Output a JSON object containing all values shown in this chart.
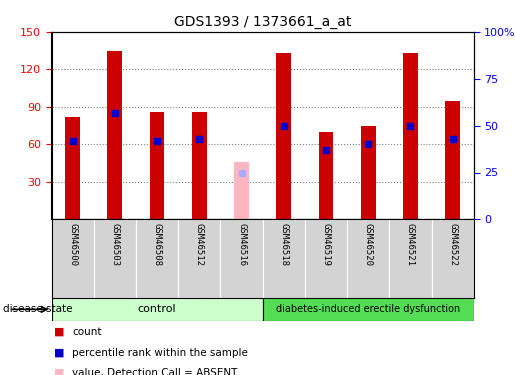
{
  "title": "GDS1393 / 1373661_a_at",
  "samples": [
    "GSM46500",
    "GSM46503",
    "GSM46508",
    "GSM46512",
    "GSM46516",
    "GSM46518",
    "GSM46519",
    "GSM46520",
    "GSM46521",
    "GSM46522"
  ],
  "counts": [
    82,
    135,
    86,
    86,
    null,
    133,
    70,
    75,
    133,
    95
  ],
  "absent_counts": [
    null,
    null,
    null,
    null,
    46,
    null,
    null,
    null,
    null,
    null
  ],
  "percentile_ranks": [
    42,
    57,
    42,
    43,
    null,
    50,
    37,
    40,
    50,
    43
  ],
  "absent_ranks": [
    null,
    null,
    null,
    null,
    25,
    null,
    null,
    null,
    null,
    null
  ],
  "ylim_left": [
    0,
    150
  ],
  "ylim_right": [
    0,
    100
  ],
  "yticks_left": [
    30,
    60,
    90,
    120,
    150
  ],
  "yticks_right": [
    0,
    25,
    50,
    75,
    100
  ],
  "bar_width": 0.35,
  "count_color": "#CC0000",
  "absent_count_color": "#FFB6C1",
  "percentile_color": "#0000CC",
  "absent_rank_color": "#AAAAFF",
  "control_bg": "#CCFFCC",
  "disease_bg": "#55DD55"
}
